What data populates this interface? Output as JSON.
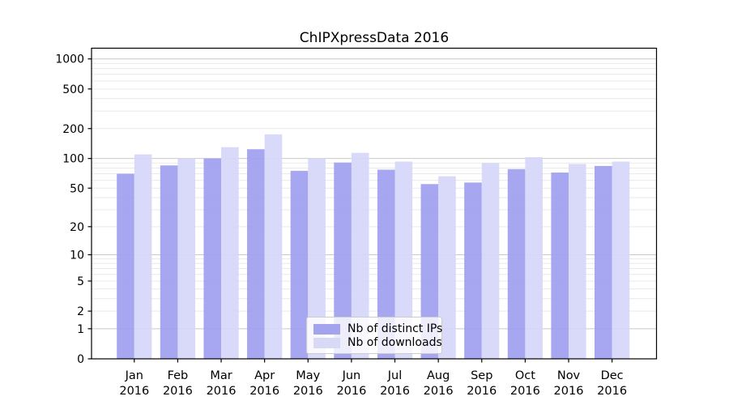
{
  "chart_data": {
    "type": "bar",
    "title": "ChIPXpressData 2016",
    "categories": [
      "Jan",
      "Feb",
      "Mar",
      "Apr",
      "May",
      "Jun",
      "Jul",
      "Aug",
      "Sep",
      "Oct",
      "Nov",
      "Dec"
    ],
    "category_year": "2016",
    "series": [
      {
        "name": "Nb of distinct IPs",
        "color": "#9e9ef0",
        "legend_color": "#a3a3ee",
        "values": [
          70,
          85,
          100,
          124,
          75,
          91,
          77,
          55,
          57,
          78,
          72,
          84
        ]
      },
      {
        "name": "Nb of downloads",
        "color": "#d6d6f8",
        "legend_color": "#d8d8f7",
        "values": [
          110,
          100,
          130,
          175,
          100,
          114,
          93,
          66,
          90,
          103,
          88,
          93
        ]
      }
    ],
    "xlabel": "",
    "ylabel": "",
    "yscale": "log1p",
    "y_ticks": [
      0,
      1,
      2,
      5,
      10,
      20,
      50,
      100,
      200,
      500,
      1000
    ],
    "ylim": [
      0,
      1280
    ],
    "grid": true,
    "grid_major_at": [
      1,
      10,
      100,
      1000
    ],
    "grid_major_color": "#c9c9c9",
    "grid_minor_color": "#e9e9e9",
    "axis_color": "#000000",
    "bar_opacity": 0.92,
    "legend_position": "lower center"
  }
}
